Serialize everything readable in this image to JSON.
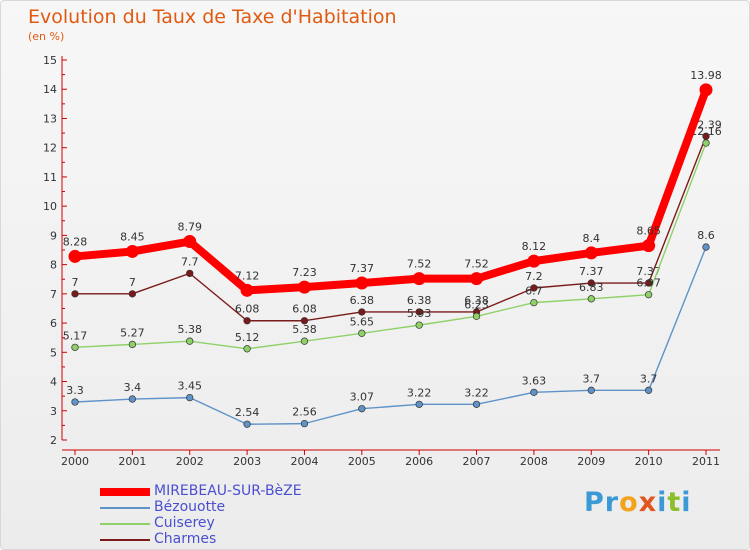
{
  "header": {
    "title": "Evolution du Taux de Taxe d'Habitation",
    "unit": "(en %)"
  },
  "logo": {
    "text": "Proxiti",
    "letters": [
      {
        "ch": "P",
        "color": "#3b9ad6"
      },
      {
        "ch": "r",
        "color": "#3b9ad6"
      },
      {
        "ch": "o",
        "color": "#f2a21b"
      },
      {
        "ch": "x",
        "color": "#e2551f"
      },
      {
        "ch": "i",
        "color": "#3b9ad6"
      },
      {
        "ch": "t",
        "color": "#8cbd2c"
      },
      {
        "ch": "i",
        "color": "#3b9ad6"
      }
    ]
  },
  "chart_data": {
    "type": "line",
    "title": "Evolution du Taux de Taxe d'Habitation",
    "ylabel": "(en %)",
    "xlabel": "",
    "ylim": [
      2,
      15
    ],
    "y_ticks": [
      2,
      3,
      4,
      5,
      6,
      7,
      8,
      9,
      10,
      11,
      12,
      13,
      14,
      15
    ],
    "categories": [
      "2000",
      "2001",
      "2002",
      "2003",
      "2004",
      "2005",
      "2006",
      "2007",
      "2008",
      "2009",
      "2010",
      "2011"
    ],
    "grid": false,
    "legend_position": "bottom-left",
    "series": [
      {
        "name": "Charmes",
        "color": "#7a1a1a",
        "values": [
          7,
          7,
          7.7,
          6.08,
          6.08,
          6.38,
          6.38,
          6.38,
          7.2,
          7.37,
          7.37,
          12.39
        ],
        "labels": [
          "7",
          "7",
          "7.7",
          "6.08",
          "6.08",
          "6.38",
          "6.38",
          "6.38",
          "7.2",
          "7.37",
          "7.37",
          "12.39"
        ]
      },
      {
        "name": "Cuiserey",
        "color": "#8fd168",
        "values": [
          5.17,
          5.27,
          5.38,
          5.12,
          5.38,
          5.65,
          5.93,
          6.23,
          6.7,
          6.83,
          6.97,
          12.16
        ],
        "labels": [
          "5.17",
          "5.27",
          "5.38",
          "5.12",
          "5.38",
          "5.65",
          "5.93",
          "6.23",
          "6.7",
          "6.83",
          "6.97",
          "12.16"
        ]
      },
      {
        "name": "Bézouotte",
        "color": "#5f93c8",
        "values": [
          3.3,
          3.4,
          3.45,
          2.54,
          2.56,
          3.07,
          3.22,
          3.22,
          3.63,
          3.7,
          3.7,
          8.6
        ],
        "labels": [
          "3.3",
          "3.4",
          "3.45",
          "2.54",
          "2.56",
          "3.07",
          "3.22",
          "3.22",
          "3.63",
          "3.7",
          "3.7",
          "8.6"
        ]
      },
      {
        "name": "MIREBEAU-SUR-BèZE",
        "color": "#ff0000",
        "values": [
          8.28,
          8.45,
          8.79,
          7.12,
          7.23,
          7.37,
          7.52,
          7.52,
          8.12,
          8.4,
          8.65,
          13.98
        ],
        "labels": [
          "8.28",
          "8.45",
          "8.79",
          "7.12",
          "7.23",
          "7.37",
          "7.52",
          "7.52",
          "8.12",
          "8.4",
          "8.65",
          "13.98"
        ]
      }
    ],
    "legend_order": [
      "MIREBEAU-SUR-BèZE",
      "Bézouotte",
      "Cuiserey",
      "Charmes"
    ]
  }
}
